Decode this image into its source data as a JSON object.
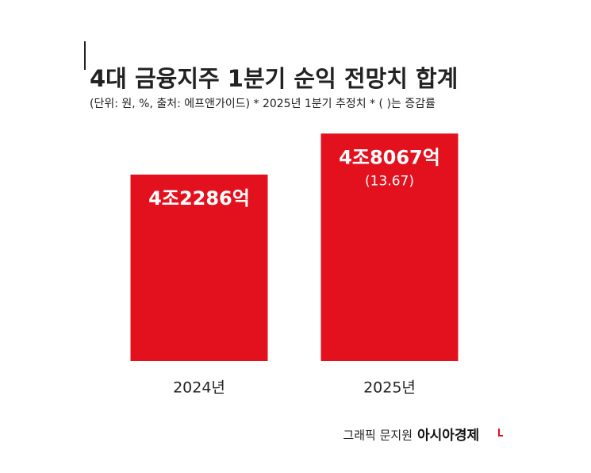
{
  "chart_data": {
    "type": "bar",
    "title": "4대 금융지주 1분기 순익 전망치 합계",
    "subtitle": "(단위: 원, %, 출처: 에프앤가이드)  * 2025년 1분기 추정치  * ( )는 증감률",
    "categories": [
      "2024년",
      "2025년"
    ],
    "values": [
      42286,
      48067
    ],
    "value_labels": [
      "4조2286억",
      "4조8067억"
    ],
    "growth": [
      null,
      13.67
    ],
    "growth_labels": [
      null,
      "(13.67)"
    ],
    "color": "#e3111d",
    "ylim": [
      16000,
      50000
    ],
    "credit": "그래픽 문지원",
    "publisher": "아시아경제"
  }
}
